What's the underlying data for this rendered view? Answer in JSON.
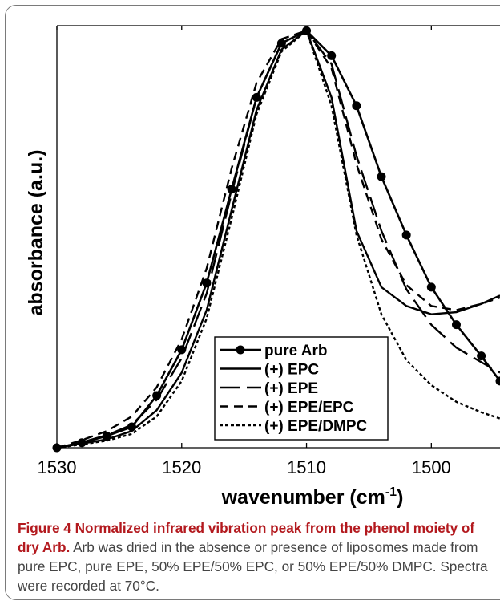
{
  "chart_data": {
    "type": "line",
    "title": "",
    "xlabel": "wavenumber (cm",
    "xlabel_sup": "-1",
    "xlabel_close": ")",
    "ylabel": "absorbance (a.u.)",
    "xlim": [
      1530,
      1494.5
    ],
    "x_reversed": true,
    "ylim": [
      0,
      1.012
    ],
    "xticks": [
      1530,
      1520,
      1510,
      1500
    ],
    "xtick_labels": [
      "1530",
      "1520",
      "1510",
      "1500"
    ],
    "grid": false,
    "legend_position": "bottom-center",
    "series": [
      {
        "name": "pure Arb",
        "style": "solid-markers",
        "x": [
          1530,
          1528,
          1526,
          1524,
          1522,
          1520,
          1518,
          1516,
          1514,
          1512,
          1510,
          1508,
          1506,
          1504,
          1502,
          1500,
          1498,
          1496,
          1494.5
        ],
        "y": [
          0.0,
          0.012,
          0.028,
          0.05,
          0.125,
          0.235,
          0.395,
          0.62,
          0.84,
          0.97,
          1.0,
          0.94,
          0.82,
          0.65,
          0.51,
          0.385,
          0.295,
          0.22,
          0.16
        ]
      },
      {
        "name": "(+) EPC",
        "style": "solid",
        "x": [
          1530,
          1528,
          1526,
          1524,
          1522,
          1520,
          1518,
          1516,
          1514,
          1512,
          1510,
          1508,
          1506,
          1504,
          1502,
          1500,
          1498,
          1496,
          1494.5
        ],
        "y": [
          0.0,
          0.01,
          0.02,
          0.04,
          0.09,
          0.18,
          0.33,
          0.57,
          0.81,
          0.955,
          1.0,
          0.84,
          0.52,
          0.385,
          0.34,
          0.32,
          0.325,
          0.345,
          0.365
        ]
      },
      {
        "name": "(+) EPE",
        "style": "long-dash",
        "x": [
          1530,
          1528,
          1526,
          1524,
          1522,
          1520,
          1518,
          1516,
          1514,
          1512,
          1510,
          1508,
          1506,
          1504,
          1502,
          1500,
          1498,
          1496,
          1494.5
        ],
        "y": [
          0.0,
          0.013,
          0.03,
          0.055,
          0.115,
          0.215,
          0.37,
          0.61,
          0.84,
          0.97,
          1.0,
          0.92,
          0.7,
          0.52,
          0.38,
          0.295,
          0.24,
          0.205,
          0.18
        ]
      },
      {
        "name": "(+) EPE/EPC",
        "style": "short-dash",
        "x": [
          1530,
          1528,
          1526,
          1524,
          1522,
          1520,
          1518,
          1516,
          1514,
          1512,
          1510,
          1508,
          1506,
          1504,
          1502,
          1500,
          1498,
          1496,
          1494.5
        ],
        "y": [
          0.0,
          0.018,
          0.04,
          0.075,
          0.145,
          0.26,
          0.43,
          0.67,
          0.875,
          0.98,
          1.0,
          0.91,
          0.68,
          0.5,
          0.39,
          0.34,
          0.33,
          0.345,
          0.36
        ]
      },
      {
        "name": "(+) EPE/DMPC",
        "style": "dotted",
        "x": [
          1530,
          1528,
          1526,
          1524,
          1522,
          1520,
          1518,
          1516,
          1514,
          1512,
          1510,
          1508,
          1506,
          1504,
          1502,
          1500,
          1498,
          1496,
          1494.5
        ],
        "y": [
          0.0,
          0.008,
          0.017,
          0.033,
          0.075,
          0.16,
          0.31,
          0.55,
          0.8,
          0.95,
          1.0,
          0.82,
          0.51,
          0.32,
          0.21,
          0.15,
          0.11,
          0.085,
          0.07
        ]
      }
    ]
  },
  "caption": {
    "lead": "Figure 4 Normalized infrared vibration peak from the phenol moiety of dry Arb.",
    "body": " Arb was dried in the absence or presence of liposomes made from pure EPC, pure EPE, 50% EPE/50% EPC, or 50% EPE/50% DMPC. Spectra were recorded at 70°C."
  },
  "colors": {
    "line": "#000000",
    "caption_lead": "#b3191e",
    "caption_text": "#444444",
    "frame": "#7a7a7a"
  }
}
